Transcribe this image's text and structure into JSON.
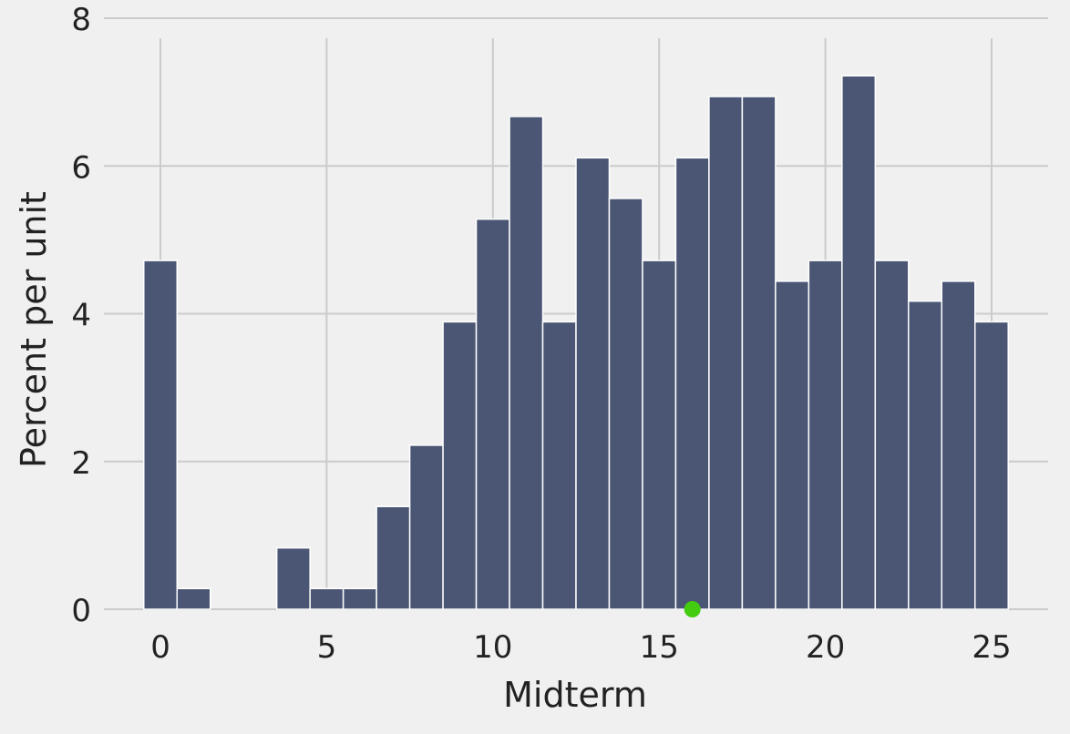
{
  "chart_data": {
    "type": "bar",
    "title": "",
    "xlabel": "Midterm",
    "ylabel": "Percent per unit",
    "bin_width": 1,
    "categories": [
      "0",
      "1",
      "2",
      "3",
      "4",
      "5",
      "6",
      "7",
      "8",
      "9",
      "10",
      "11",
      "12",
      "13",
      "14",
      "15",
      "16",
      "17",
      "18",
      "19",
      "20",
      "21",
      "22",
      "23",
      "24",
      "25"
    ],
    "values": [
      4.72,
      0.28,
      0,
      0,
      0.83,
      0.28,
      0.28,
      1.39,
      2.22,
      3.89,
      5.28,
      6.67,
      3.89,
      6.11,
      5.56,
      4.72,
      6.11,
      6.94,
      6.94,
      4.44,
      4.72,
      7.22,
      4.72,
      4.17,
      4.44,
      3.89
    ],
    "marker": {
      "x": 16,
      "y": 0,
      "color": "#44cc11"
    },
    "xticks": [
      "0",
      "5",
      "10",
      "15",
      "20",
      "25"
    ],
    "yticks": [
      "0",
      "2",
      "4",
      "6",
      "8"
    ],
    "xlim": [
      -1.7,
      26.7
    ],
    "ylim": [
      0,
      8
    ],
    "grid": true,
    "colors": {
      "bar": "#4a5674",
      "bar_edge": "#ffffff",
      "grid": "#cbcbcb",
      "background": "#f0f0f0"
    }
  }
}
